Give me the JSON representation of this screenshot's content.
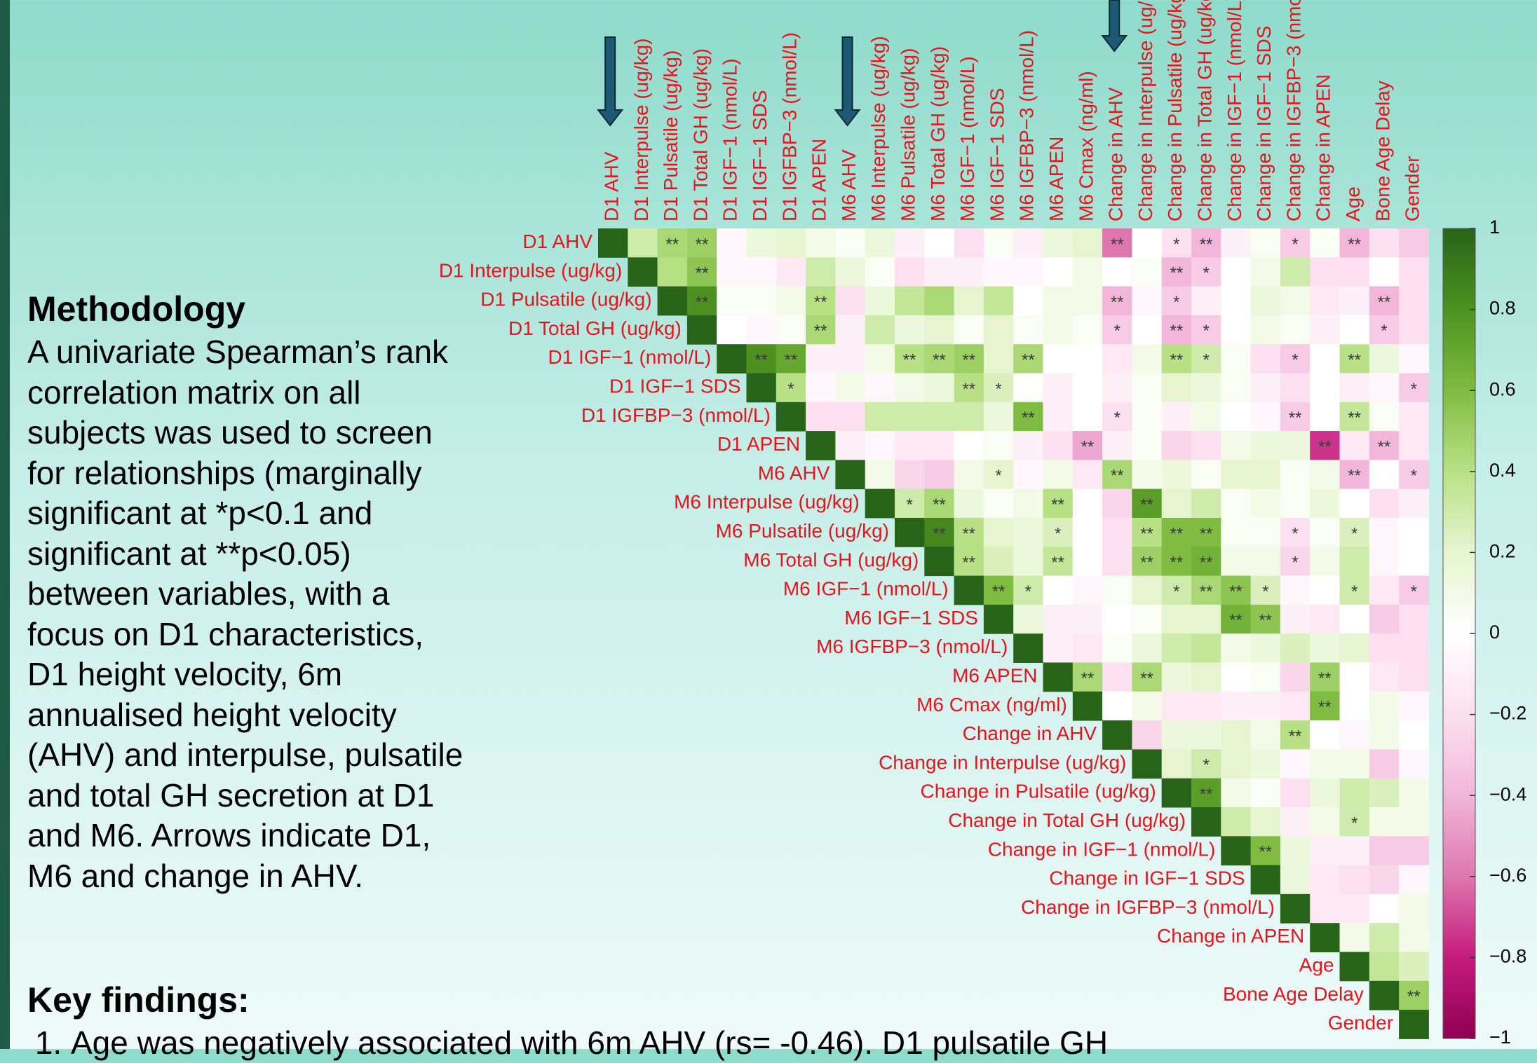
{
  "methodology": {
    "heading": "Methodology",
    "text": "A univariate Spearman’s rank correlation matrix on all subjects was used to screen for relationships (marginally significant at *p<0.1 and significant at **p<0.05) between variables, with a focus on D1 characteristics, D1 height velocity, 6m annualised height velocity (AHV) and interpulse, pulsatile and total GH secretion at D1 and M6. Arrows indicate D1, M6 and change in AHV."
  },
  "key_findings": {
    "heading": "Key findings:",
    "items": [
      "Age was negatively associated with 6m AHV (rs= -0.46). D1 pulsatile GH"
    ]
  },
  "chart_data": {
    "type": "heatmap",
    "variables": [
      "D1 AHV",
      "D1 Interpulse (ug/kg)",
      "D1 Pulsatile (ug/kg)",
      "D1 Total GH (ug/kg)",
      "D1 IGF−1 (nmol/L)",
      "D1 IGF−1 SDS",
      "D1 IGFBP−3 (nmol/L)",
      "D1 APEN",
      "M6 AHV",
      "M6 Interpulse (ug/kg)",
      "M6 Pulsatile (ug/kg)",
      "M6 Total GH (ug/kg)",
      "M6 IGF−1 (nmol/L)",
      "M6 IGF−1 SDS",
      "M6 IGFBP−3 (nmol/L)",
      "M6 APEN",
      "M6 Cmax (ng/ml)",
      "Change in AHV",
      "Change in Interpulse (ug/kg)",
      "Change in Pulsatile (ug/kg)",
      "Change in Total GH (ug/kg)",
      "Change in IGF−1 (nmol/L)",
      "Change in IGF−1 SDS",
      "Change in IGFBP−3 (nmol/L)",
      "Change in APEN",
      "Age",
      "Bone Age Delay",
      "Gender"
    ],
    "values": [
      [
        1,
        0.3,
        0.45,
        0.5,
        -0.05,
        0.15,
        0.2,
        0.1,
        0.05,
        0.15,
        -0.1,
        0,
        -0.2,
        0.05,
        -0.1,
        0.15,
        0.2,
        -0.6,
        0,
        -0.2,
        -0.4,
        -0.1,
        0.05,
        -0.3,
        0.05,
        -0.4,
        -0.2,
        -0.3
      ],
      [
        1,
        0.4,
        0.55,
        -0.05,
        -0.05,
        -0.15,
        0.3,
        0.15,
        0.05,
        -0.2,
        -0.1,
        -0.1,
        -0.05,
        -0.05,
        0,
        0.1,
        0,
        0.05,
        -0.4,
        -0.3,
        0,
        0.1,
        0.3,
        -0.2,
        -0.2,
        0,
        -0.2
      ],
      [
        1,
        0.8,
        0.05,
        0.05,
        0.1,
        0.4,
        -0.2,
        0.15,
        0.35,
        0.45,
        0.2,
        0.35,
        0,
        0.1,
        0.1,
        -0.4,
        -0.05,
        -0.3,
        -0.1,
        0,
        0.15,
        0.1,
        -0.15,
        -0.1,
        -0.4,
        -0.2
      ],
      [
        1,
        0,
        -0.05,
        0.05,
        0.45,
        -0.1,
        0.3,
        0.15,
        0.2,
        0.05,
        0.2,
        0.05,
        0.1,
        0.05,
        -0.3,
        0,
        -0.4,
        -0.3,
        0,
        0.1,
        0.05,
        -0.1,
        0,
        -0.3,
        -0.2
      ],
      [
        1,
        0.8,
        0.7,
        -0.1,
        -0.1,
        0.1,
        0.4,
        0.45,
        0.5,
        0.2,
        0.45,
        0,
        0,
        -0.15,
        0.1,
        0.4,
        0.3,
        0.05,
        -0.2,
        -0.3,
        0,
        0.4,
        0.15,
        -0.05
      ],
      [
        1,
        0.4,
        -0.05,
        0.1,
        -0.05,
        0.1,
        0.15,
        0.4,
        0.25,
        0,
        -0.1,
        0,
        -0.1,
        0.05,
        0.2,
        0.15,
        0.05,
        -0.1,
        -0.2,
        0,
        -0.1,
        -0.05,
        -0.3
      ],
      [
        1,
        -0.2,
        -0.2,
        0.3,
        0.3,
        0.3,
        0.3,
        0.15,
        0.6,
        -0.1,
        0,
        -0.2,
        0.05,
        -0.1,
        0.1,
        0,
        -0.05,
        -0.3,
        0,
        0.35,
        0.05,
        -0.15
      ],
      [
        1,
        -0.1,
        -0.05,
        -0.15,
        -0.15,
        0,
        0.05,
        -0.1,
        -0.2,
        -0.45,
        -0.1,
        0.05,
        -0.25,
        -0.2,
        0.1,
        0.15,
        0.15,
        -0.75,
        -0.15,
        -0.4,
        -0.15
      ],
      [
        1,
        0.1,
        -0.25,
        -0.3,
        0.1,
        0.2,
        -0.05,
        0.1,
        -0.15,
        0.45,
        0.1,
        0.15,
        0.05,
        0.2,
        0.2,
        0.05,
        0.1,
        -0.4,
        0,
        -0.3
      ],
      [
        1,
        0.3,
        0.45,
        0.15,
        0.05,
        0.1,
        0.4,
        0,
        -0.25,
        0.75,
        0.2,
        0.3,
        0.05,
        0.1,
        0.05,
        0.15,
        0,
        -0.2,
        -0.1
      ],
      [
        1,
        0.85,
        0.4,
        0.2,
        0.15,
        0.25,
        0,
        -0.2,
        0.4,
        0.6,
        0.6,
        0.05,
        0.05,
        -0.2,
        0.05,
        0.25,
        -0.05,
        0
      ],
      [
        1,
        0.4,
        0.25,
        0.15,
        0.35,
        0,
        -0.2,
        0.5,
        0.6,
        0.65,
        0.1,
        0.1,
        -0.25,
        0.1,
        0.3,
        -0.05,
        0
      ],
      [
        1,
        0.6,
        0.3,
        0,
        -0.05,
        0.05,
        0.2,
        0.3,
        0.45,
        0.55,
        0.25,
        -0.05,
        0,
        0.3,
        -0.15,
        -0.3
      ],
      [
        1,
        0.15,
        -0.1,
        -0.1,
        0,
        0.05,
        0.2,
        0.2,
        0.65,
        0.55,
        -0.1,
        -0.15,
        0,
        -0.3,
        -0.2
      ],
      [
        1,
        -0.1,
        -0.15,
        0.05,
        0.15,
        0.3,
        0.35,
        0.1,
        0.15,
        0.25,
        0.15,
        0.2,
        -0.2,
        -0.2
      ],
      [
        1,
        0.45,
        -0.2,
        0.45,
        0.15,
        0.2,
        0,
        0.05,
        -0.25,
        0.5,
        0,
        -0.15,
        -0.2
      ],
      [
        1,
        0,
        0.1,
        -0.15,
        -0.15,
        -0.1,
        -0.1,
        -0.15,
        0.6,
        0,
        0.1,
        -0.05
      ],
      [
        1,
        -0.25,
        0.15,
        0.15,
        0.2,
        0.1,
        0.4,
        0,
        -0.05,
        0.1,
        0
      ],
      [
        1,
        0.2,
        0.3,
        0.2,
        0.15,
        -0.05,
        0.1,
        0.1,
        -0.3,
        -0.05
      ],
      [
        1,
        0.75,
        0.1,
        0.05,
        -0.2,
        0.15,
        0.3,
        0.25,
        0.1
      ],
      [
        1,
        0.3,
        0.2,
        -0.1,
        0.1,
        0.3,
        0.1,
        0.1
      ],
      [
        1,
        0.6,
        0.15,
        -0.1,
        -0.1,
        -0.3,
        -0.3
      ],
      [
        1,
        0.15,
        -0.15,
        -0.2,
        -0.25,
        -0.05
      ],
      [
        1,
        -0.15,
        -0.15,
        0,
        0.1
      ],
      [
        1,
        0.1,
        0.3,
        0.1
      ],
      [
        1,
        0.35,
        0.25
      ],
      [
        1,
        0.5
      ],
      [
        1
      ]
    ],
    "significance": [
      [
        null,
        null,
        "**",
        "**",
        null,
        null,
        null,
        null,
        null,
        null,
        null,
        null,
        null,
        null,
        null,
        null,
        null,
        "**",
        null,
        "*",
        "**",
        null,
        null,
        "*",
        null,
        "**",
        null,
        null
      ],
      [
        null,
        null,
        "**",
        null,
        null,
        null,
        null,
        null,
        null,
        null,
        null,
        null,
        null,
        null,
        null,
        null,
        null,
        null,
        "**",
        "*",
        null,
        null,
        null,
        null,
        null,
        null,
        null
      ],
      [
        null,
        "**",
        null,
        null,
        null,
        "**",
        null,
        null,
        null,
        null,
        null,
        null,
        null,
        null,
        null,
        "**",
        null,
        "*",
        null,
        null,
        null,
        null,
        null,
        null,
        "**",
        null
      ],
      [
        null,
        null,
        null,
        null,
        "**",
        null,
        null,
        null,
        null,
        null,
        null,
        null,
        null,
        null,
        "*",
        null,
        "**",
        "*",
        null,
        null,
        null,
        null,
        null,
        "*",
        null
      ],
      [
        null,
        "**",
        "**",
        null,
        null,
        null,
        "**",
        "**",
        "**",
        null,
        "**",
        null,
        null,
        null,
        null,
        "**",
        "*",
        null,
        null,
        "*",
        null,
        "**",
        null,
        null
      ],
      [
        null,
        "*",
        null,
        null,
        null,
        null,
        null,
        "**",
        "*",
        null,
        null,
        null,
        null,
        null,
        null,
        null,
        null,
        null,
        null,
        null,
        null,
        null,
        "*"
      ],
      [
        null,
        null,
        null,
        null,
        null,
        null,
        null,
        null,
        "**",
        null,
        null,
        "*",
        null,
        null,
        null,
        null,
        null,
        "**",
        null,
        "**",
        null,
        null
      ],
      [
        null,
        null,
        null,
        null,
        null,
        null,
        null,
        null,
        null,
        "**",
        null,
        null,
        null,
        null,
        null,
        null,
        null,
        "**",
        null,
        "**",
        null
      ],
      [
        null,
        null,
        null,
        null,
        null,
        "*",
        null,
        null,
        null,
        "**",
        null,
        null,
        null,
        null,
        null,
        null,
        null,
        "**",
        null,
        "*"
      ],
      [
        null,
        "*",
        "**",
        null,
        null,
        null,
        "**",
        null,
        null,
        "**",
        null,
        null,
        null,
        null,
        null,
        null,
        null,
        null,
        null
      ],
      [
        null,
        "**",
        "**",
        null,
        null,
        "*",
        null,
        null,
        "**",
        "**",
        "**",
        null,
        null,
        "*",
        null,
        "*",
        null,
        null
      ],
      [
        null,
        "**",
        null,
        null,
        "**",
        null,
        null,
        "**",
        "**",
        "**",
        null,
        null,
        "*",
        null,
        null,
        null,
        null
      ],
      [
        null,
        "**",
        "*",
        null,
        null,
        null,
        null,
        "*",
        "**",
        "**",
        "*",
        null,
        null,
        "*",
        null,
        "*"
      ],
      [
        null,
        null,
        null,
        null,
        null,
        null,
        null,
        null,
        "**",
        "**",
        null,
        null,
        null,
        null,
        null
      ],
      [
        null,
        null,
        null,
        null,
        null,
        null,
        null,
        null,
        null,
        null,
        null,
        null,
        null,
        null
      ],
      [
        null,
        "**",
        null,
        "**",
        null,
        null,
        null,
        null,
        null,
        "**",
        null,
        null,
        null
      ],
      [
        null,
        null,
        null,
        null,
        null,
        null,
        null,
        null,
        "**",
        null,
        null,
        null
      ],
      [
        null,
        null,
        null,
        null,
        null,
        null,
        "**",
        null,
        null,
        null,
        null
      ],
      [
        null,
        null,
        "*",
        null,
        null,
        null,
        null,
        null,
        null,
        null
      ],
      [
        null,
        "**",
        null,
        null,
        null,
        null,
        null,
        null,
        null
      ],
      [
        null,
        null,
        null,
        null,
        null,
        "*",
        null,
        null
      ],
      [
        null,
        "**",
        null,
        null,
        null,
        null,
        null
      ],
      [
        null,
        null,
        null,
        null,
        null,
        null
      ],
      [
        null,
        null,
        null,
        null,
        null
      ],
      [
        null,
        null,
        null,
        null
      ],
      [
        null,
        null,
        null
      ],
      [
        null,
        "**"
      ],
      [
        null
      ]
    ],
    "zlim": [
      -1,
      1
    ],
    "colorscale": [
      "#8e0152",
      "#c51b7d",
      "#de77ae",
      "#f1b6da",
      "#fde0ef",
      "#ffffff",
      "#e6f5d0",
      "#b8e186",
      "#7fbc41",
      "#4d9221",
      "#276419"
    ],
    "colorbar_ticks": [
      1,
      0.8,
      0.6,
      0.4,
      0.2,
      0,
      {
        "value": -0.2,
        "label": "−0.2"
      },
      {
        "value": -0.4,
        "label": "−0.4"
      },
      {
        "value": -0.6,
        "label": "−0.6"
      },
      {
        "value": -0.8,
        "label": "−0.8"
      },
      {
        "value": -1,
        "label": "−1"
      }
    ],
    "label_color": "#e8141c"
  }
}
